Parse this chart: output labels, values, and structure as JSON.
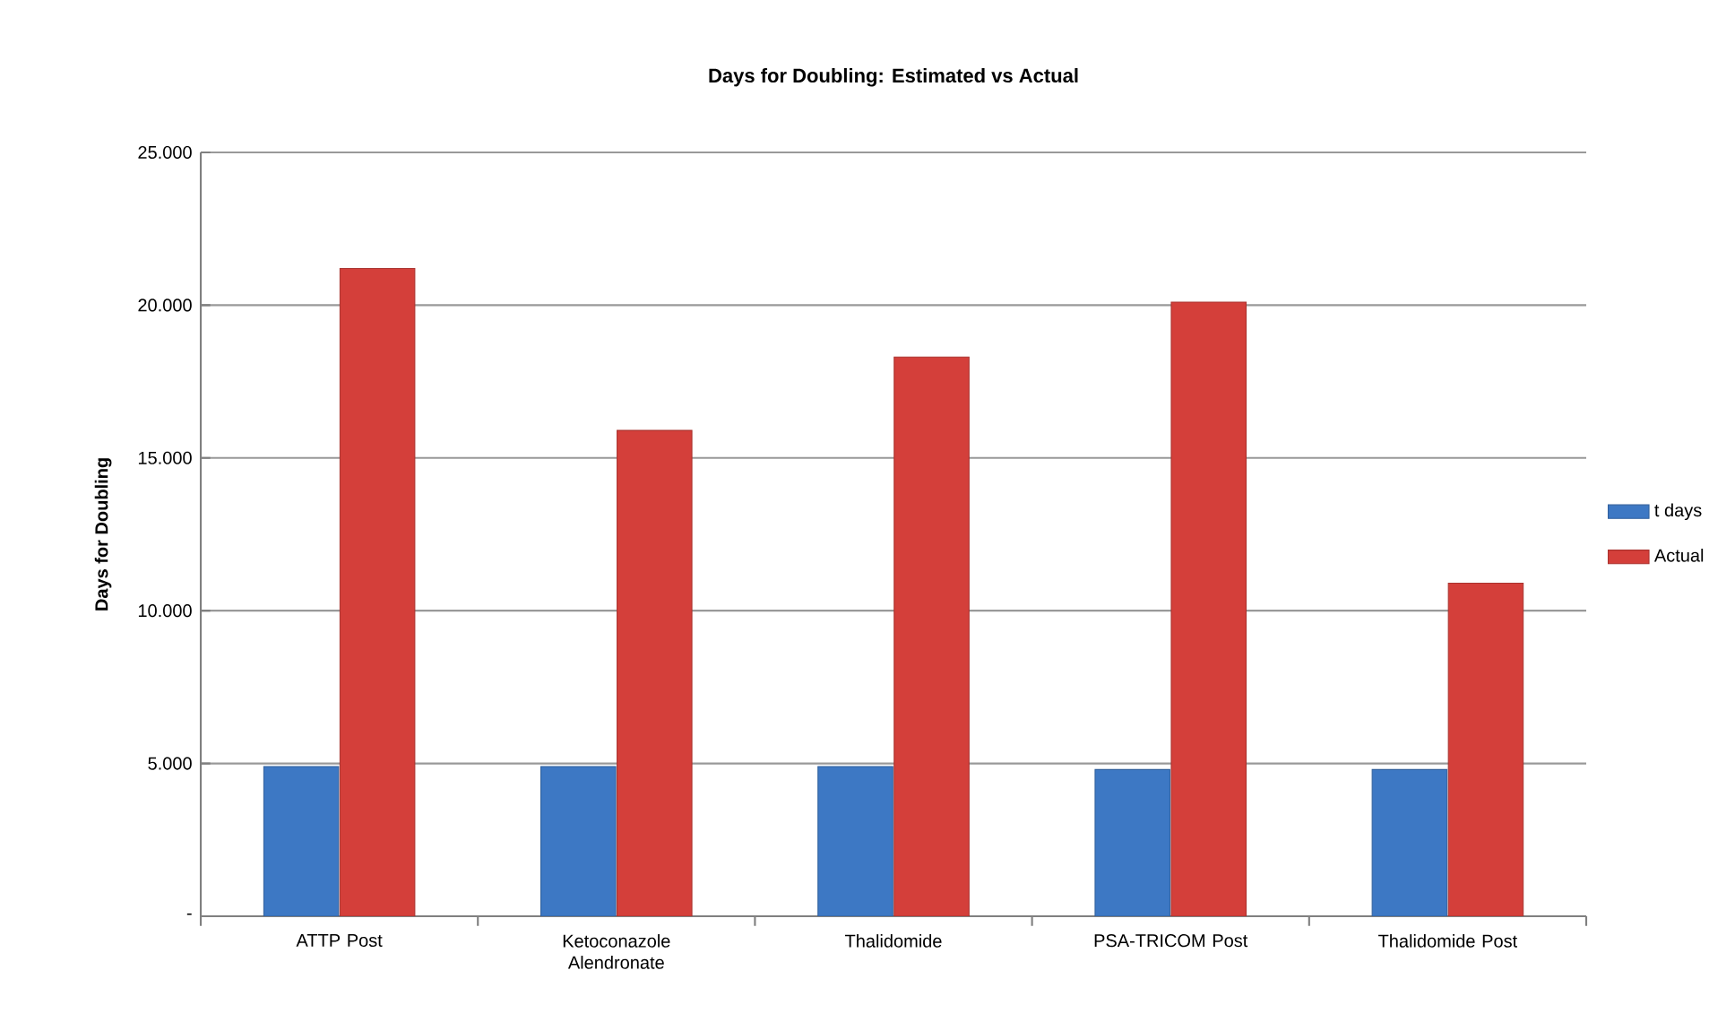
{
  "chart_data": {
    "type": "bar",
    "title": "Days for Doubling: Estimated vs Actual",
    "ylabel": "Days for Doubling",
    "categories": [
      "ATTP Post",
      "Ketoconazole Alendronate",
      "Thalidomide",
      "PSA-TRICOM Post",
      "Thalidomide Post"
    ],
    "series": [
      {
        "name": "t days",
        "color": "#3d78c4",
        "values": [
          4.9,
          4.9,
          4.9,
          4.8,
          4.8
        ]
      },
      {
        "name": "Actual",
        "color": "#d43f3a",
        "values": [
          21.2,
          15.9,
          18.3,
          20.1,
          10.9
        ]
      }
    ],
    "ylim": [
      0,
      25
    ],
    "yticks": [
      {
        "value": 0,
        "label": "-"
      },
      {
        "value": 5,
        "label": "5.000"
      },
      {
        "value": 10,
        "label": "10.000"
      },
      {
        "value": 15,
        "label": "15.000"
      },
      {
        "value": 20,
        "label": "20.000"
      },
      {
        "value": 25,
        "label": "25.000"
      }
    ],
    "grid": "y",
    "legend": "right"
  }
}
